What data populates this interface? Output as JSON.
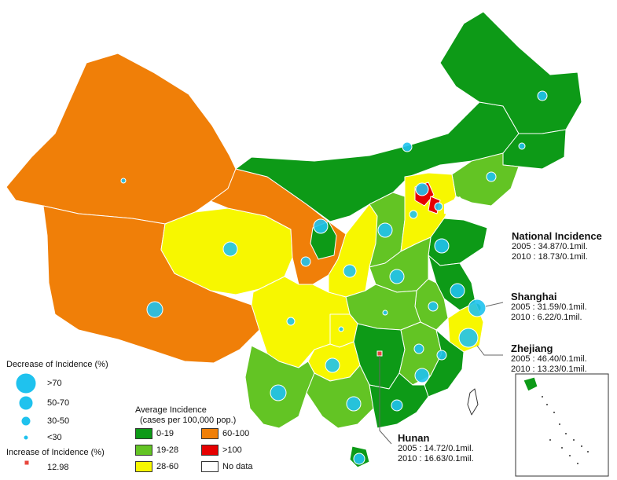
{
  "colors": {
    "c0_19": "#0d9a17",
    "c19_28": "#63c424",
    "c28_60": "#f7f700",
    "c60_100": "#f07f08",
    "c100": "#e60000",
    "nodata": "#ffffff",
    "bubble": "#1fc2ee",
    "increase": "#e8463c"
  },
  "national": {
    "title": "National Incidence",
    "l2005": "2005 : 34.87/0.1mil.",
    "l2010": "2010 : 18.73/0.1mil."
  },
  "shanghai": {
    "title": "Shanghai",
    "l2005": "2005 : 31.59/0.1mil.",
    "l2010": "2010 :   6.22/0.1mil."
  },
  "zhejiang": {
    "title": "Zhejiang",
    "l2005": "2005 : 46.40/0.1mil.",
    "l2010": "2010 : 13.23/0.1mil."
  },
  "hunan": {
    "title": "Hunan",
    "l2005": "2005 : 14.72/0.1mil.",
    "l2010": "2010 : 16.63/0.1mil."
  },
  "legend_decrease": {
    "title": "Decrease of Incidence (%)",
    "items": [
      ">70",
      "50-70",
      "30-50",
      "<30"
    ]
  },
  "legend_increase": {
    "title": "Increase of Incidence (%)",
    "value": "12.98"
  },
  "legend_average": {
    "title1": "Average Incidence",
    "title2": "(cases per 100,000 pop.)",
    "items": [
      "0-19",
      "19-28",
      "28-60",
      "60-100",
      ">100",
      "No data"
    ]
  }
}
